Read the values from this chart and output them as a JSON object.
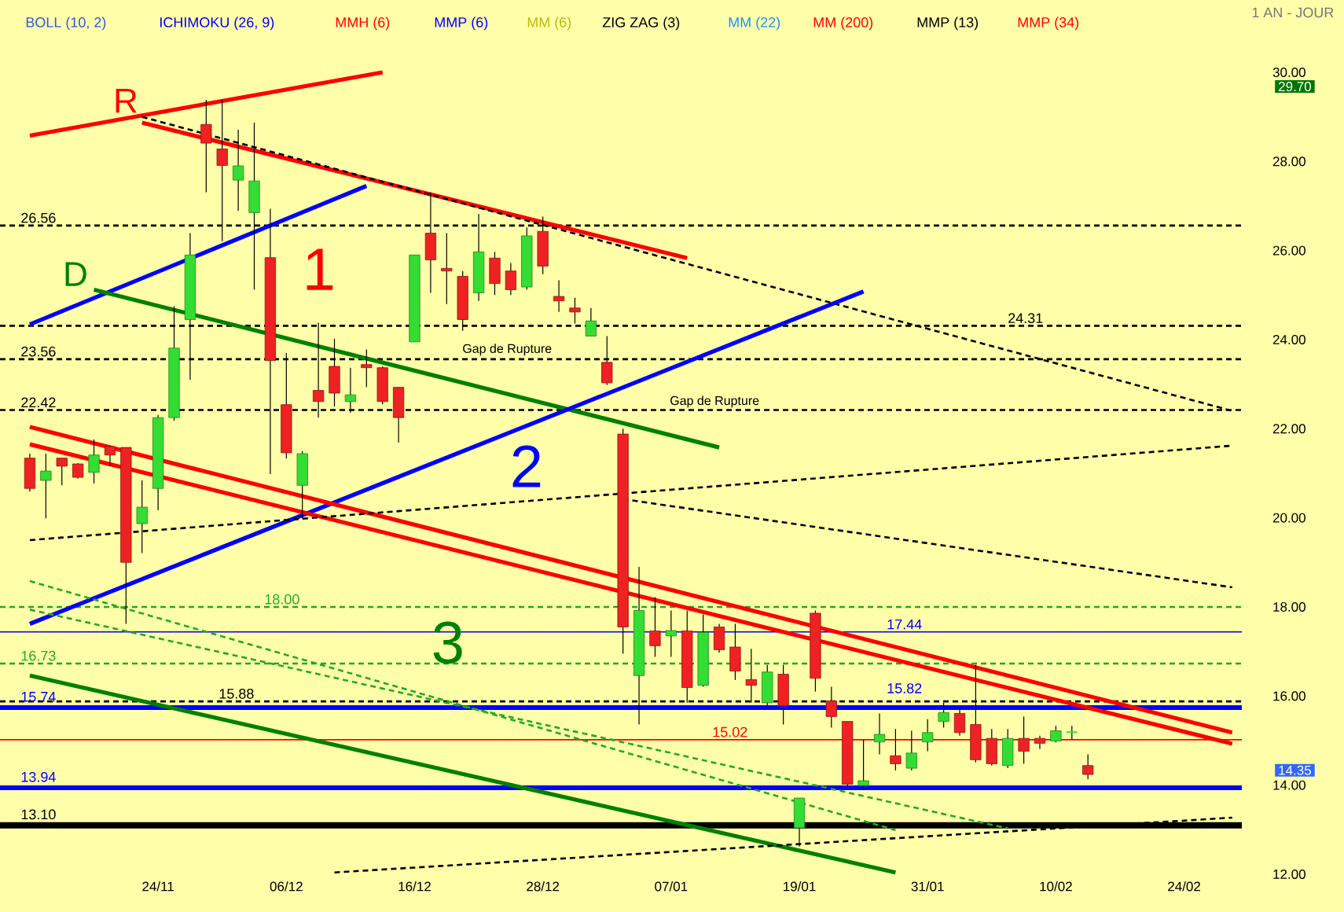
{
  "chart_data": {
    "type": "candlestick",
    "subtitle": "1 AN - JOUR",
    "categories": [
      null,
      null,
      null,
      null,
      null,
      null,
      null,
      null,
      "24/11",
      null,
      null,
      null,
      null,
      null,
      null,
      null,
      "06/12",
      null,
      null,
      null,
      null,
      null,
      null,
      null,
      "16/12",
      null,
      null,
      null,
      null,
      null,
      null,
      null,
      "28/12",
      null,
      null,
      null,
      null,
      null,
      null,
      null,
      "07/01",
      null,
      null,
      null,
      null,
      null,
      null,
      null,
      "19/01",
      null,
      null,
      null,
      null,
      null,
      null,
      null,
      "31/01",
      null,
      null,
      null,
      null,
      null,
      null,
      null,
      "10/02",
      null,
      null,
      null,
      null,
      null,
      null,
      null,
      "24/02",
      null,
      null,
      null
    ],
    "ohlc": [
      [
        21.34,
        21.44,
        20.59,
        20.66
      ],
      [
        20.84,
        21.44,
        19.99,
        21.05
      ],
      [
        21.34,
        21.34,
        20.73,
        21.16
      ],
      [
        21.21,
        21.23,
        20.88,
        20.91
      ],
      [
        21.02,
        21.76,
        20.77,
        21.41
      ],
      [
        21.6,
        21.62,
        21.16,
        21.41
      ],
      [
        21.58,
        21.58,
        17.62,
        19.0
      ],
      [
        19.87,
        20.84,
        19.21,
        20.24
      ],
      [
        20.66,
        22.31,
        20.17,
        22.25
      ],
      [
        22.25,
        24.75,
        22.18,
        23.81
      ],
      [
        24.45,
        26.39,
        23.1,
        25.9
      ],
      [
        28.83,
        29.38,
        27.31,
        28.41
      ],
      [
        28.28,
        29.38,
        26.21,
        27.91
      ],
      [
        27.58,
        28.71,
        26.89,
        27.9
      ],
      [
        26.85,
        28.87,
        25.12,
        27.56
      ],
      [
        25.84,
        26.94,
        20.98,
        23.53
      ],
      [
        22.54,
        23.7,
        21.33,
        21.46
      ],
      [
        20.73,
        21.5,
        19.99,
        21.44
      ],
      [
        22.86,
        24.38,
        22.25,
        22.61
      ],
      [
        23.4,
        24.02,
        22.5,
        22.8
      ],
      [
        22.61,
        23.37,
        22.36,
        22.76
      ],
      [
        23.44,
        23.78,
        22.93,
        23.37
      ],
      [
        23.37,
        23.4,
        22.55,
        22.61
      ],
      [
        22.93,
        22.93,
        21.69,
        22.25
      ],
      [
        23.95,
        25.9,
        23.95,
        25.9
      ],
      [
        26.39,
        27.31,
        25.05,
        25.79
      ],
      [
        25.6,
        26.39,
        24.8,
        25.54
      ],
      [
        25.42,
        25.54,
        24.2,
        24.45
      ],
      [
        25.05,
        26.82,
        24.87,
        25.97
      ],
      [
        25.83,
        25.97,
        25.0,
        25.26
      ],
      [
        25.54,
        25.72,
        25.0,
        25.12
      ],
      [
        25.18,
        26.52,
        25.12,
        26.33
      ],
      [
        26.43,
        26.76,
        25.47,
        25.65
      ],
      [
        24.97,
        25.33,
        24.62,
        24.87
      ],
      [
        24.71,
        24.94,
        24.36,
        24.62
      ],
      [
        24.08,
        24.71,
        24.08,
        24.42
      ],
      [
        23.49,
        24.08,
        22.98,
        23.03
      ],
      [
        21.88,
        22.0,
        16.95,
        17.55
      ],
      [
        16.46,
        18.9,
        15.36,
        17.92
      ],
      [
        17.46,
        18.22,
        16.88,
        17.13
      ],
      [
        17.35,
        17.92,
        16.88,
        17.47
      ],
      [
        17.46,
        17.92,
        15.85,
        16.19
      ],
      [
        16.24,
        17.83,
        16.21,
        17.43
      ],
      [
        17.55,
        17.62,
        16.97,
        17.04
      ],
      [
        17.1,
        17.62,
        16.36,
        16.56
      ],
      [
        16.37,
        17.06,
        15.85,
        16.24
      ],
      [
        15.85,
        16.7,
        15.78,
        16.54
      ],
      [
        16.49,
        16.7,
        15.36,
        15.78
      ],
      [
        13.04,
        13.71,
        12.62,
        13.71
      ],
      [
        17.86,
        17.92,
        16.1,
        16.4
      ],
      [
        15.89,
        16.21,
        15.29,
        15.54
      ],
      [
        15.43,
        15.43,
        13.96,
        14.02
      ],
      [
        13.99,
        15.02,
        13.9,
        14.1
      ],
      [
        14.97,
        15.61,
        14.69,
        15.14
      ],
      [
        14.66,
        15.26,
        14.33,
        14.48
      ],
      [
        14.38,
        15.22,
        14.33,
        14.72
      ],
      [
        14.97,
        15.48,
        14.76,
        15.18
      ],
      [
        15.43,
        15.85,
        15.29,
        15.63
      ],
      [
        15.61,
        15.72,
        15.11,
        15.18
      ],
      [
        15.36,
        16.7,
        14.51,
        14.57
      ],
      [
        15.05,
        15.26,
        14.44,
        14.48
      ],
      [
        14.44,
        15.26,
        14.38,
        15.05
      ],
      [
        15.05,
        15.54,
        14.48,
        14.76
      ],
      [
        15.05,
        15.11,
        14.81,
        14.94
      ],
      [
        14.99,
        15.33,
        14.96,
        15.22
      ],
      [
        15.19,
        15.33,
        15.02,
        15.19
      ],
      [
        14.44,
        14.69,
        14.13,
        14.24
      ],
      null,
      null,
      null,
      null,
      null,
      null,
      null,
      null,
      null
    ],
    "colors": [
      "#ee2222",
      "#33dd33",
      "#ee2222",
      "#ee2222",
      "#33dd33",
      "#ee2222",
      "#ee2222",
      "#33dd33",
      "#33dd33",
      "#33dd33",
      "#33dd33",
      "#ee2222",
      "#ee2222",
      "#33dd33",
      "#33dd33",
      "#ee2222",
      "#ee2222",
      "#33dd33",
      "#ee2222",
      "#ee2222",
      "#33dd33",
      "#ee2222",
      "#ee2222",
      "#ee2222",
      "#33dd33",
      "#ee2222",
      "#ee2222",
      "#ee2222",
      "#33dd33",
      "#ee2222",
      "#ee2222",
      "#33dd33",
      "#ee2222",
      "#ee2222",
      "#ee2222",
      "#33dd33",
      "#ee2222",
      "#ee2222",
      "#33dd33",
      "#ee2222",
      "#33dd33",
      "#ee2222",
      "#33dd33",
      "#ee2222",
      "#ee2222",
      "#ee2222",
      "#33dd33",
      "#ee2222",
      "#33dd33",
      "#ee2222",
      "#ee2222",
      "#ee2222",
      "#33dd33",
      "#33dd33",
      "#ee2222",
      "#33dd33",
      "#33dd33",
      "#33dd33",
      "#ee2222",
      "#ee2222",
      "#ee2222",
      "#33dd33",
      "#ee2222",
      "#ee2222",
      "#33dd33",
      "#33dd33",
      "#ee2222",
      null,
      null,
      null,
      null,
      null,
      null,
      null,
      null,
      null
    ],
    "series": [
      {
        "type": "line",
        "color": "#ff0000",
        "line_style": "solid",
        "values": [
          28.58,
          null,
          null,
          null,
          null,
          null,
          null,
          null,
          null,
          null,
          null,
          null,
          null,
          null,
          null,
          null,
          null,
          null,
          null,
          null,
          null,
          null,
          30.0,
          null,
          null,
          null,
          null,
          null,
          null,
          null,
          null,
          null,
          null,
          null,
          null,
          null,
          null,
          null,
          null,
          null,
          null,
          null,
          null,
          null,
          null,
          null,
          null,
          null,
          null,
          null,
          null,
          null,
          null,
          null,
          null,
          null,
          null,
          null,
          null,
          null,
          null,
          null,
          null,
          null,
          null,
          null,
          null,
          null,
          null,
          null,
          null,
          null,
          null,
          null,
          null,
          null
        ]
      },
      {
        "type": "line",
        "color": "#ff0000",
        "line_style": "solid",
        "values": [
          null,
          null,
          null,
          null,
          null,
          null,
          null,
          28.87,
          null,
          null,
          null,
          null,
          null,
          null,
          null,
          null,
          null,
          null,
          null,
          null,
          null,
          null,
          null,
          null,
          null,
          null,
          null,
          null,
          null,
          null,
          null,
          null,
          null,
          null,
          null,
          null,
          null,
          null,
          null,
          null,
          null,
          25.83,
          null,
          null,
          null,
          null,
          null,
          null,
          null,
          null,
          null,
          null,
          null,
          null,
          null,
          null,
          null,
          null,
          null,
          null,
          null,
          null,
          null,
          null,
          null,
          null,
          null,
          null,
          null,
          null,
          null,
          null,
          null,
          null,
          null,
          null
        ]
      },
      {
        "type": "line",
        "color": "#000000",
        "line_style": "dashed",
        "values": [
          null,
          null,
          null,
          null,
          null,
          null,
          null,
          29.0,
          null,
          null,
          null,
          null,
          null,
          null,
          null,
          null,
          null,
          null,
          null,
          null,
          null,
          null,
          null,
          null,
          null,
          null,
          null,
          null,
          null,
          null,
          null,
          null,
          null,
          null,
          null,
          null,
          null,
          null,
          null,
          null,
          null,
          null,
          null,
          null,
          null,
          null,
          null,
          null,
          null,
          null,
          null,
          null,
          null,
          null,
          null,
          null,
          null,
          null,
          null,
          null,
          null,
          null,
          null,
          null,
          null,
          null,
          null,
          null,
          null,
          null,
          null,
          null,
          null,
          null,
          null,
          22.4
        ]
      },
      {
        "type": "line",
        "color": "#0000ff",
        "line_style": "solid",
        "values": [
          24.34,
          null,
          null,
          null,
          null,
          null,
          null,
          null,
          null,
          null,
          null,
          null,
          null,
          null,
          null,
          null,
          null,
          null,
          null,
          null,
          null,
          27.45,
          null,
          null,
          null,
          null,
          null,
          null,
          null,
          null,
          null,
          null,
          null,
          null,
          null,
          null,
          null,
          null,
          null,
          null,
          null,
          null,
          null,
          null,
          null,
          null,
          null,
          null,
          null,
          null,
          null,
          null,
          null,
          null,
          null,
          null,
          null,
          null,
          null,
          null,
          null,
          null,
          null,
          null,
          null,
          null,
          null,
          null,
          null,
          null,
          null,
          null,
          null,
          null,
          null,
          null
        ]
      },
      {
        "type": "line",
        "color": "#008000",
        "line_style": "solid",
        "values": [
          null,
          null,
          null,
          null,
          25.12,
          null,
          null,
          null,
          null,
          null,
          null,
          null,
          null,
          null,
          null,
          null,
          null,
          null,
          null,
          null,
          null,
          null,
          null,
          null,
          null,
          null,
          null,
          null,
          null,
          null,
          null,
          null,
          null,
          null,
          null,
          null,
          null,
          null,
          null,
          null,
          null,
          null,
          null,
          21.58,
          null,
          null,
          null,
          null,
          null,
          null,
          null,
          null,
          null,
          null,
          null,
          null,
          null,
          null,
          null,
          null,
          null,
          null,
          null,
          null,
          null,
          null,
          null,
          null,
          null,
          null,
          null,
          null,
          null,
          null,
          null,
          null
        ]
      },
      {
        "type": "line",
        "color": "#0000ff",
        "line_style": "solid",
        "values": [
          17.62,
          null,
          null,
          null,
          null,
          null,
          null,
          null,
          null,
          null,
          null,
          null,
          null,
          null,
          null,
          null,
          null,
          null,
          null,
          null,
          null,
          null,
          null,
          null,
          null,
          null,
          null,
          null,
          null,
          null,
          null,
          null,
          null,
          null,
          null,
          null,
          null,
          null,
          null,
          null,
          null,
          null,
          null,
          null,
          null,
          null,
          null,
          null,
          null,
          null,
          null,
          null,
          25.08,
          null,
          null,
          null,
          null,
          null,
          null,
          null,
          null,
          null,
          null,
          null,
          null,
          null,
          null,
          null,
          null,
          null,
          null,
          null,
          null,
          null,
          null,
          null
        ]
      },
      {
        "type": "line",
        "color": "#ff0000",
        "line_style": "solid",
        "values": [
          22.04,
          null,
          null,
          null,
          null,
          null,
          null,
          null,
          null,
          null,
          null,
          null,
          null,
          null,
          null,
          null,
          null,
          null,
          null,
          null,
          null,
          null,
          null,
          null,
          null,
          null,
          null,
          null,
          null,
          null,
          null,
          null,
          null,
          null,
          null,
          null,
          null,
          null,
          null,
          null,
          null,
          null,
          null,
          null,
          null,
          null,
          null,
          null,
          null,
          null,
          null,
          null,
          null,
          null,
          null,
          null,
          null,
          null,
          null,
          null,
          null,
          null,
          null,
          null,
          null,
          null,
          null,
          null,
          null,
          null,
          null,
          null,
          null,
          null,
          null,
          15.18
        ]
      },
      {
        "type": "line",
        "color": "#ff0000",
        "line_style": "solid",
        "values": [
          21.65,
          null,
          null,
          null,
          null,
          null,
          null,
          null,
          null,
          null,
          null,
          null,
          null,
          null,
          null,
          null,
          null,
          null,
          null,
          null,
          null,
          null,
          null,
          null,
          null,
          null,
          null,
          null,
          null,
          null,
          null,
          null,
          null,
          null,
          null,
          null,
          null,
          null,
          null,
          null,
          null,
          null,
          null,
          null,
          null,
          null,
          null,
          null,
          null,
          null,
          null,
          null,
          null,
          null,
          null,
          null,
          null,
          null,
          null,
          null,
          null,
          null,
          null,
          null,
          null,
          null,
          null,
          null,
          null,
          null,
          null,
          null,
          null,
          null,
          null,
          14.93
        ]
      },
      {
        "type": "line",
        "color": "#008000",
        "line_style": "solid",
        "values": [
          16.46,
          null,
          null,
          null,
          null,
          null,
          null,
          null,
          null,
          null,
          null,
          null,
          null,
          null,
          null,
          null,
          null,
          null,
          null,
          null,
          null,
          null,
          null,
          null,
          null,
          null,
          null,
          null,
          null,
          null,
          null,
          null,
          null,
          null,
          null,
          null,
          null,
          null,
          null,
          null,
          null,
          null,
          null,
          null,
          null,
          null,
          null,
          null,
          null,
          null,
          null,
          null,
          null,
          null,
          12.04,
          null,
          null,
          null,
          null,
          null,
          null,
          null,
          null,
          null,
          null,
          null,
          null,
          null,
          null,
          null,
          null,
          null,
          null,
          null,
          null,
          null
        ]
      },
      {
        "type": "line",
        "color": "#22aa22",
        "line_style": "dashed",
        "values": [
          18.58,
          null,
          null,
          null,
          null,
          null,
          null,
          null,
          null,
          null,
          null,
          null,
          null,
          null,
          null,
          null,
          null,
          null,
          null,
          null,
          null,
          null,
          null,
          null,
          null,
          null,
          null,
          null,
          null,
          null,
          null,
          null,
          null,
          null,
          null,
          null,
          null,
          null,
          null,
          null,
          null,
          null,
          null,
          null,
          null,
          null,
          null,
          null,
          null,
          null,
          null,
          null,
          null,
          null,
          12.99,
          null,
          null,
          null,
          null,
          null,
          null,
          null,
          null,
          null,
          null,
          null,
          null,
          null,
          null,
          null,
          null,
          null,
          null,
          null,
          null,
          null
        ]
      },
      {
        "type": "line",
        "color": "#22aa22",
        "line_style": "dashed",
        "values": [
          17.94,
          null,
          null,
          null,
          null,
          null,
          null,
          null,
          null,
          null,
          null,
          null,
          null,
          null,
          null,
          null,
          null,
          null,
          null,
          null,
          null,
          null,
          null,
          null,
          null,
          null,
          null,
          null,
          null,
          null,
          null,
          null,
          null,
          null,
          null,
          null,
          null,
          null,
          null,
          null,
          null,
          null,
          null,
          null,
          null,
          null,
          null,
          null,
          null,
          null,
          null,
          null,
          null,
          null,
          null,
          null,
          null,
          null,
          null,
          null,
          null,
          13.03,
          null,
          null,
          null,
          null,
          null,
          null,
          null,
          null,
          null,
          null,
          null,
          null,
          null,
          null
        ]
      },
      {
        "type": "line",
        "color": "#000000",
        "line_style": "dashed",
        "values": [
          19.5,
          null,
          null,
          null,
          null,
          null,
          null,
          null,
          null,
          null,
          null,
          null,
          null,
          null,
          null,
          null,
          null,
          null,
          null,
          null,
          null,
          null,
          null,
          null,
          null,
          null,
          null,
          null,
          null,
          null,
          null,
          null,
          null,
          null,
          null,
          null,
          null,
          null,
          null,
          null,
          null,
          null,
          null,
          null,
          null,
          null,
          null,
          null,
          null,
          null,
          null,
          null,
          null,
          null,
          null,
          null,
          null,
          null,
          null,
          null,
          null,
          null,
          null,
          null,
          null,
          null,
          null,
          null,
          null,
          null,
          null,
          null,
          null,
          null,
          null,
          21.62
        ]
      },
      {
        "type": "line",
        "color": "#000000",
        "line_style": "dashed",
        "values": [
          null,
          null,
          null,
          null,
          null,
          null,
          null,
          null,
          null,
          null,
          null,
          null,
          null,
          null,
          null,
          null,
          null,
          null,
          null,
          null,
          null,
          null,
          null,
          null,
          null,
          null,
          null,
          null,
          null,
          null,
          null,
          null,
          null,
          null,
          null,
          null,
          null,
          20.42,
          null,
          null,
          null,
          null,
          null,
          null,
          null,
          null,
          null,
          null,
          null,
          null,
          null,
          null,
          null,
          null,
          null,
          null,
          null,
          null,
          null,
          null,
          null,
          null,
          null,
          null,
          null,
          null,
          null,
          null,
          null,
          null,
          null,
          null,
          null,
          null,
          null,
          18.44
        ]
      },
      {
        "type": "line",
        "color": "#000000",
        "line_style": "dashed",
        "values": [
          null,
          null,
          null,
          null,
          null,
          null,
          null,
          null,
          null,
          null,
          null,
          null,
          null,
          null,
          null,
          null,
          null,
          null,
          null,
          12.04,
          null,
          null,
          null,
          null,
          null,
          null,
          null,
          null,
          null,
          null,
          null,
          null,
          null,
          null,
          null,
          null,
          null,
          null,
          null,
          null,
          null,
          null,
          null,
          null,
          null,
          null,
          null,
          null,
          null,
          null,
          null,
          null,
          null,
          null,
          null,
          null,
          null,
          null,
          null,
          null,
          null,
          null,
          null,
          null,
          null,
          null,
          null,
          null,
          null,
          null,
          null,
          null,
          null,
          null,
          null,
          13.27
        ]
      }
    ],
    "ylim": [
      12,
      30
    ],
    "yticks": [
      {
        "value": 12,
        "label": "12.00"
      },
      {
        "value": 14,
        "label": "14.00"
      },
      {
        "value": 16,
        "label": "16.00"
      },
      {
        "value": 18,
        "label": "18.00"
      },
      {
        "value": 20,
        "label": "20.00"
      },
      {
        "value": 22,
        "label": "22.00"
      },
      {
        "value": 24,
        "label": "24.00"
      },
      {
        "value": 26,
        "label": "26.00"
      },
      {
        "value": 28,
        "label": "28.00"
      },
      {
        "value": 30,
        "label": "30.00"
      }
    ],
    "ref_lines": [
      {
        "axis": "y",
        "value": 26.56,
        "label": "26.56",
        "color": "#000000",
        "line_style": "dashed"
      },
      {
        "axis": "y",
        "value": 24.31,
        "label": "24.31",
        "color": "#000000",
        "line_style": "dashed"
      },
      {
        "axis": "y",
        "value": 23.56,
        "label": "23.56",
        "color": "#000000",
        "line_style": "dashed"
      },
      {
        "axis": "y",
        "value": 22.42,
        "label": "22.42",
        "color": "#000000",
        "line_style": "dashed"
      },
      {
        "axis": "y",
        "value": 18,
        "label": "18.00",
        "color": "#22aa22",
        "line_style": "dashed"
      },
      {
        "axis": "y",
        "value": 16.73,
        "label": "16.73",
        "color": "#22aa22",
        "line_style": "dashed"
      },
      {
        "axis": "y",
        "value": 15.88,
        "label": "15.88",
        "color": "#000000",
        "line_style": "dashed"
      },
      {
        "axis": "y",
        "value": 15.74,
        "label": "15.74",
        "color": "#0000ff",
        "line_style": "solid"
      },
      {
        "axis": "y",
        "value": 13.94,
        "label": "13.94",
        "color": "#0000ff",
        "line_style": "solid"
      },
      {
        "axis": "y",
        "value": 13.1,
        "label": "13.10",
        "color": "#000000",
        "line_style": "solid"
      },
      {
        "axis": "y",
        "value": 17.44,
        "label": "17.44",
        "color": "#0000ff",
        "line_style": "solid"
      },
      {
        "axis": "y",
        "value": 15.02,
        "label": "15.02",
        "color": "#ff0000",
        "line_style": "solid"
      }
    ],
    "annotations": [
      "BOLL (10, 2)",
      "ICHIMOKU (26, 9)",
      "MMH (6)",
      "MMP (6)",
      "MM (6)",
      "ZIG ZAG (3)",
      "MM (22)",
      "MM (200)",
      "MMP (13)",
      "MMP (34)",
      "R",
      "D",
      "1",
      "2",
      "3",
      "Gap de Rupture",
      "Gap de Rupture",
      "29.70",
      "14.35",
      "15.82"
    ]
  }
}
